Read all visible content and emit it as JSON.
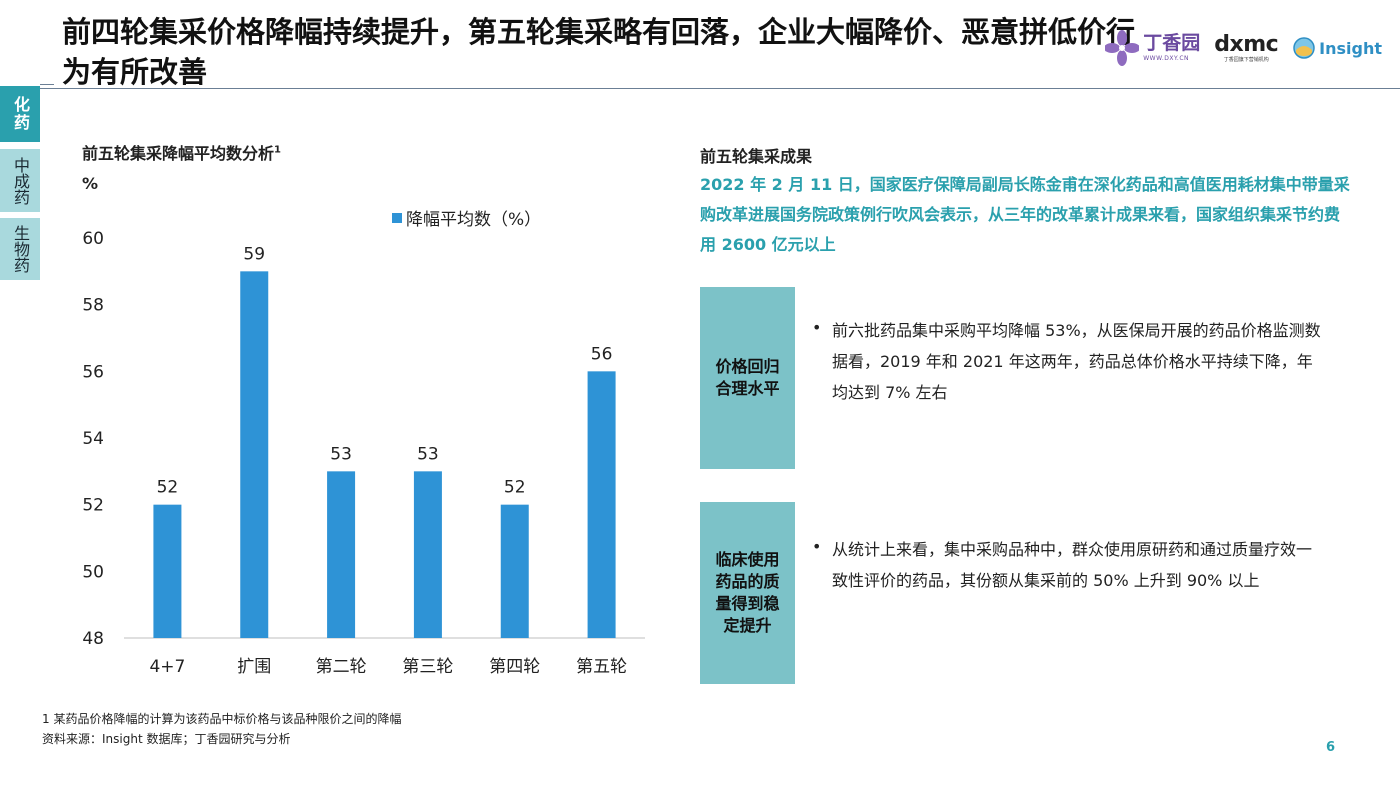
{
  "header": {
    "title": "前四轮集采价格降幅持续提升，第五轮集采略有回落，企业大幅降价、恶意拼低价行为有所改善",
    "logos": {
      "dxy_cn": "丁香园",
      "dxy_url": "WWW.DXY.CN",
      "dxmc": "dxmc",
      "dxmc_sub": "丁香园旗下营销机构",
      "insight": "Insight"
    }
  },
  "side_tabs": [
    {
      "label": "化药",
      "active": true
    },
    {
      "label": "中成药",
      "active": false
    },
    {
      "label": "生物药",
      "active": false
    }
  ],
  "left": {
    "chart_title": "前五轮集采降幅平均数分析",
    "chart_title_sup": "1",
    "unit": "%",
    "legend": "降幅平均数（%）"
  },
  "chart_data": {
    "type": "bar",
    "title": "前五轮集采降幅平均数分析",
    "categories": [
      "4+7",
      "扩围",
      "第二轮",
      "第三轮",
      "第四轮",
      "第五轮"
    ],
    "series": [
      {
        "name": "降幅平均数（%）",
        "values": [
          52,
          59,
          53,
          53,
          52,
          56
        ]
      }
    ],
    "ylabel": "%",
    "ylim": [
      48,
      60
    ],
    "yticks": [
      48,
      50,
      52,
      54,
      56,
      58,
      60
    ],
    "grid": false,
    "legend": "top",
    "color": "#2e93d6"
  },
  "right": {
    "title": "前五轮集采成果",
    "highlight": "2022 年 2 月 11 日，国家医疗保障局副局长陈金甫在深化药品和高值医用耗材集中带量采购改革进展国务院政策例行吹风会表示，从三年的改革累计成果来看，国家组织集采节约费用 2600 亿元以上",
    "results": [
      {
        "label": "价格回归合理水平",
        "text": "前六批药品集中采购平均降幅 53%，从医保局开展的药品价格监测数据看，2019 年和 2021 年这两年，药品总体价格水平持续下降，年均达到 7% 左右"
      },
      {
        "label": "临床使用药品的质量得到稳定提升",
        "text": "从统计上来看，集中采购品种中，群众使用原研药和通过质量疗效一致性评价的药品，其份额从集采前的 50% 上升到 90% 以上"
      }
    ],
    "bullet": "•"
  },
  "footer": {
    "note": "1 某药品价格降幅的计算为该药品中标价格与该品种限价之间的降幅",
    "source": "资料来源：Insight 数据库；丁香园研究与分析",
    "page": "6"
  },
  "colors": {
    "accent": "#2aa0ad",
    "bar": "#2e93d6",
    "box": "#7cc2c8",
    "tab_inactive": "#a9d9dd"
  }
}
